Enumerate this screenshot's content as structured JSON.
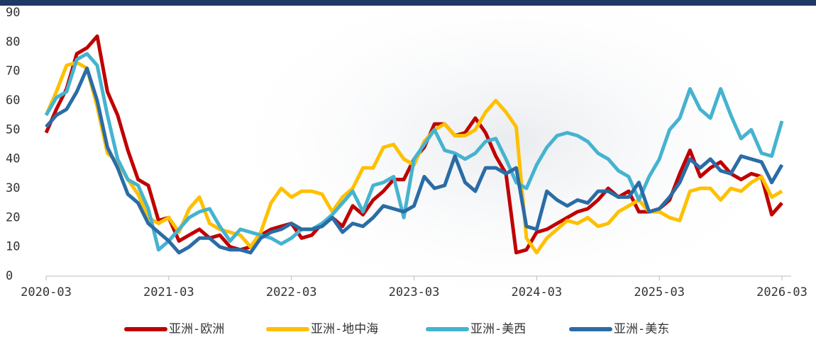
{
  "chart_data": {
    "type": "line",
    "categories": [
      "2020-03",
      null,
      null,
      null,
      null,
      null,
      null,
      null,
      null,
      null,
      null,
      null,
      "2021-03",
      null,
      null,
      null,
      null,
      null,
      null,
      null,
      null,
      null,
      null,
      null,
      "2022-03",
      null,
      null,
      null,
      null,
      null,
      null,
      null,
      null,
      null,
      null,
      null,
      "2023-03",
      null,
      null,
      null,
      null,
      null,
      null,
      null,
      null,
      null,
      null,
      null,
      "2024-03",
      null,
      null,
      null,
      null,
      null,
      null,
      null,
      null,
      null,
      null,
      null,
      "2025-03",
      null,
      null,
      null,
      null,
      null,
      null,
      null,
      null,
      null,
      null,
      null,
      "2026-03"
    ],
    "series": [
      {
        "name": "亚洲-欧洲",
        "color": "#c00000",
        "values": [
          49,
          57,
          64,
          76,
          78,
          82,
          63,
          55,
          43,
          33,
          31,
          19,
          20,
          12,
          14,
          16,
          13,
          14,
          10,
          9,
          10,
          14,
          16,
          17,
          18,
          13,
          14,
          18,
          20,
          17,
          24,
          21,
          26,
          29,
          33,
          33,
          40,
          44,
          52,
          52,
          48,
          49,
          54,
          49,
          41,
          35,
          8,
          9,
          15,
          16,
          18,
          20,
          22,
          23,
          26,
          30,
          27,
          29,
          22,
          22,
          23,
          26,
          35,
          43,
          34,
          37,
          39,
          35,
          33,
          35,
          34,
          21,
          25
        ]
      },
      {
        "name": "亚洲-地中海",
        "color": "#ffc000",
        "values": [
          55,
          63,
          72,
          73,
          71,
          58,
          42,
          39,
          33,
          28,
          20,
          18,
          20,
          15,
          23,
          27,
          18,
          16,
          15,
          14,
          10,
          15,
          25,
          30,
          27,
          29,
          29,
          28,
          22,
          27,
          30,
          37,
          37,
          44,
          45,
          40,
          38,
          46,
          50,
          52,
          48,
          48,
          50,
          56,
          60,
          56,
          51,
          13,
          8,
          13,
          16,
          19,
          18,
          20,
          17,
          18,
          22,
          24,
          26,
          22,
          22,
          20,
          19,
          29,
          30,
          30,
          26,
          30,
          29,
          32,
          34,
          27,
          29
        ]
      },
      {
        "name": "亚洲-美西",
        "color": "#45b3d0",
        "values": [
          55,
          61,
          63,
          74,
          76,
          72,
          55,
          40,
          33,
          31,
          23,
          9,
          12,
          16,
          20,
          22,
          23,
          17,
          12,
          16,
          15,
          14,
          13,
          11,
          13,
          16,
          16,
          18,
          21,
          25,
          29,
          22,
          31,
          32,
          34,
          20,
          40,
          45,
          50,
          43,
          42,
          40,
          42,
          46,
          47,
          40,
          32,
          30,
          38,
          44,
          48,
          49,
          48,
          46,
          42,
          40,
          36,
          34,
          26,
          34,
          40,
          50,
          54,
          64,
          57,
          54,
          64,
          55,
          47,
          50,
          42,
          41,
          53
        ]
      },
      {
        "name": "亚洲-美东",
        "color": "#2a6ca6",
        "values": [
          51,
          55,
          57,
          63,
          71,
          60,
          44,
          37,
          28,
          25,
          18,
          15,
          12,
          8,
          10,
          13,
          13,
          10,
          9,
          9,
          8,
          13,
          15,
          16,
          18,
          16,
          16,
          17,
          20,
          15,
          18,
          17,
          20,
          24,
          23,
          22,
          24,
          34,
          30,
          31,
          41,
          32,
          29,
          37,
          37,
          35,
          37,
          17,
          16,
          29,
          26,
          24,
          26,
          25,
          29,
          29,
          27,
          27,
          32,
          22,
          23,
          27,
          32,
          40,
          37,
          40,
          36,
          35,
          41,
          40,
          39,
          32,
          38
        ]
      }
    ],
    "ylim": [
      0,
      90
    ],
    "yticks": [
      0,
      10,
      20,
      30,
      40,
      50,
      60,
      70,
      80,
      90
    ]
  }
}
